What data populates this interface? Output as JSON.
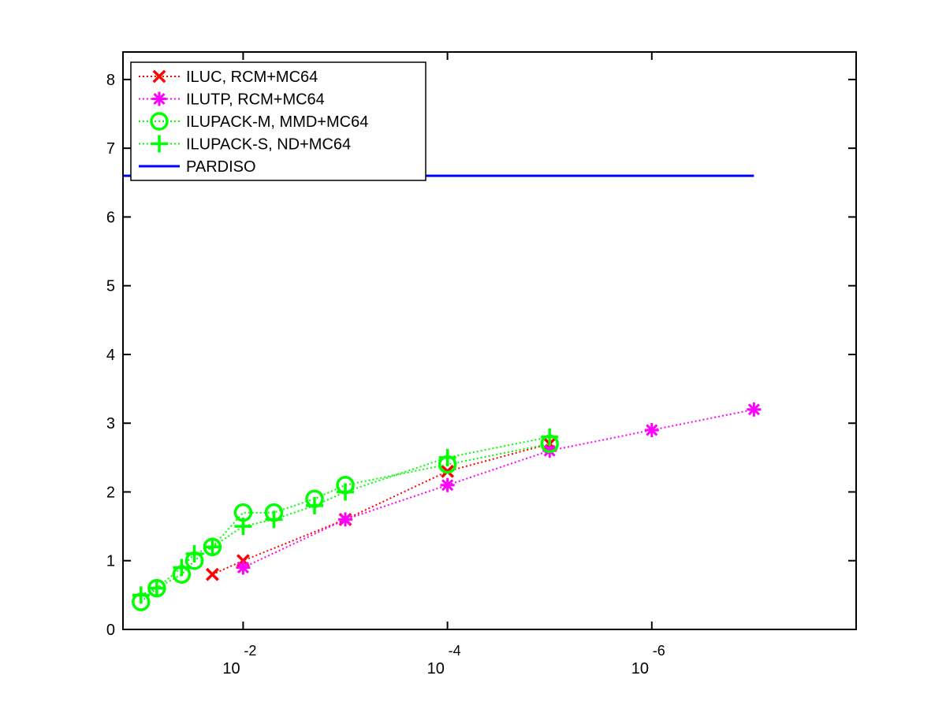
{
  "chart_data": {
    "type": "line",
    "title": "",
    "xlabel": "",
    "ylabel": "",
    "x_scale": "log",
    "x_direction": "decreasing",
    "xlim": [
      0.15,
      1e-08
    ],
    "ylim": [
      0,
      8.4
    ],
    "grid": false,
    "legend_position": "top-left",
    "y_ticks": [
      "0",
      "1",
      "2",
      "3",
      "4",
      "5",
      "6",
      "7",
      "8"
    ],
    "x_ticks": [
      {
        "value": 0.01,
        "base": "10",
        "exponent": "-2"
      },
      {
        "value": 0.0001,
        "base": "10",
        "exponent": "-4"
      },
      {
        "value": 1e-06,
        "base": "10",
        "exponent": "-6"
      }
    ],
    "series": [
      {
        "name": "ILUC, RCM+MC64",
        "color": "#ff0000",
        "marker": "x",
        "line_style": "dotted",
        "points": [
          [
            0.02,
            0.8
          ],
          [
            0.01,
            1.0
          ],
          [
            0.001,
            1.6
          ],
          [
            0.0001,
            2.3
          ],
          [
            1e-05,
            2.7
          ]
        ]
      },
      {
        "name": "ILUTP, RCM+MC64",
        "color": "#ff00ff",
        "marker": "asterisk",
        "line_style": "dotted",
        "points": [
          [
            0.01,
            0.9
          ],
          [
            0.001,
            1.6
          ],
          [
            0.0001,
            2.1
          ],
          [
            1e-05,
            2.6
          ],
          [
            1e-06,
            2.9
          ],
          [
            1e-07,
            3.2
          ]
        ]
      },
      {
        "name": "ILUPACK-M, MMD+MC64",
        "color": "#00ff00",
        "marker": "circle",
        "line_style": "dotted",
        "points": [
          [
            0.1,
            0.4
          ],
          [
            0.07,
            0.6
          ],
          [
            0.04,
            0.8
          ],
          [
            0.03,
            1.0
          ],
          [
            0.02,
            1.2
          ],
          [
            0.01,
            1.7
          ],
          [
            0.005,
            1.7
          ],
          [
            0.002,
            1.9
          ],
          [
            0.001,
            2.1
          ],
          [
            0.0001,
            2.4
          ],
          [
            1e-05,
            2.7
          ]
        ]
      },
      {
        "name": "ILUPACK-S, ND+MC64",
        "color": "#00ff00",
        "marker": "plus",
        "line_style": "dotted",
        "points": [
          [
            0.1,
            0.5
          ],
          [
            0.07,
            0.6
          ],
          [
            0.04,
            0.9
          ],
          [
            0.03,
            1.1
          ],
          [
            0.02,
            1.2
          ],
          [
            0.01,
            1.5
          ],
          [
            0.005,
            1.6
          ],
          [
            0.002,
            1.8
          ],
          [
            0.001,
            2.0
          ],
          [
            0.0001,
            2.5
          ],
          [
            1e-05,
            2.8
          ]
        ]
      },
      {
        "name": "PARDISO",
        "color": "#0000ff",
        "marker": "none",
        "line_style": "solid",
        "points": [
          [
            0.15,
            6.6
          ],
          [
            1e-07,
            6.6
          ]
        ]
      }
    ]
  }
}
